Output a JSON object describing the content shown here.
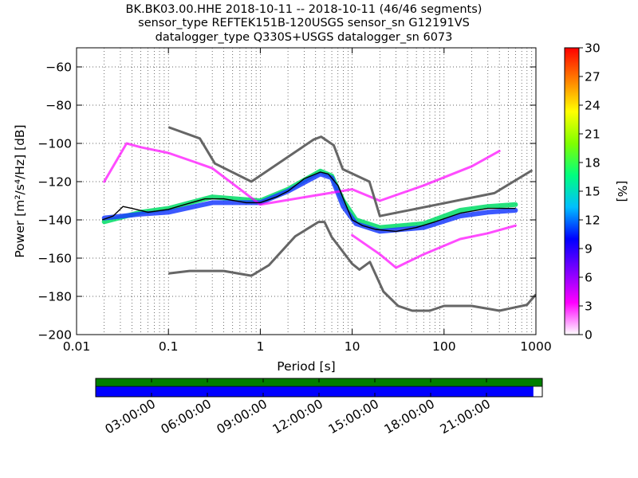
{
  "chart_data": {
    "type": "heatmap",
    "title_lines": [
      "BK.BK03.00.HHE   2018-10-11 -- 2018-10-11  (46/46 segments)",
      "sensor_type REFTEK151B-120USGS sensor_sn G12191VS",
      "datalogger_type Q330S+USGS datalogger_sn 6073"
    ],
    "xlabel": "Period [s]",
    "ylabel": "Power [m²/s⁴/Hz] [dB]",
    "x_scale": "log",
    "xlim": [
      0.01,
      1000
    ],
    "ylim": [
      -200,
      -50
    ],
    "x_ticks": [
      {
        "value": 0.01,
        "label": "0.01"
      },
      {
        "value": 0.1,
        "label": "0.1"
      },
      {
        "value": 1,
        "label": "1"
      },
      {
        "value": 10,
        "label": "10"
      },
      {
        "value": 100,
        "label": "100"
      },
      {
        "value": 1000,
        "label": "1000"
      }
    ],
    "y_ticks": [
      {
        "value": -60,
        "label": "−60"
      },
      {
        "value": -80,
        "label": "−80"
      },
      {
        "value": -100,
        "label": "−100"
      },
      {
        "value": -120,
        "label": "−120"
      },
      {
        "value": -140,
        "label": "−140"
      },
      {
        "value": -160,
        "label": "−160"
      },
      {
        "value": -180,
        "label": "−180"
      },
      {
        "value": -200,
        "label": "−200"
      }
    ],
    "colorbar": {
      "label": "[%]",
      "range": [
        0,
        30
      ],
      "ticks": [
        "0",
        "3",
        "6",
        "9",
        "12",
        "15",
        "18",
        "21",
        "24",
        "27",
        "30"
      ],
      "stops": [
        "#ffffff",
        "#ff00ff",
        "#7f00ff",
        "#0000ff",
        "#00bfff",
        "#00ff7f",
        "#7fff00",
        "#ffff00",
        "#ff7f00",
        "#ff0000"
      ]
    },
    "series": [
      {
        "name": "NHNM (high noise model)",
        "color": "#666666",
        "points": [
          [
            0.1,
            -91.5
          ],
          [
            0.22,
            -97.4
          ],
          [
            0.32,
            -110.5
          ],
          [
            0.8,
            -120
          ],
          [
            3.8,
            -98
          ],
          [
            4.6,
            -96.5
          ],
          [
            6.3,
            -101
          ],
          [
            7.9,
            -113.5
          ],
          [
            15.4,
            -120
          ],
          [
            20,
            -138
          ],
          [
            354,
            -126
          ],
          [
            912,
            -114
          ]
        ]
      },
      {
        "name": "NLNM (low noise model)",
        "color": "#666666",
        "points": [
          [
            0.1,
            -168
          ],
          [
            0.17,
            -166.7
          ],
          [
            0.4,
            -166.7
          ],
          [
            0.8,
            -169.2
          ],
          [
            1.24,
            -163.7
          ],
          [
            2.4,
            -148.6
          ],
          [
            4.3,
            -141.1
          ],
          [
            5,
            -141.1
          ],
          [
            6,
            -149
          ],
          [
            10,
            -163
          ],
          [
            12,
            -166
          ],
          [
            15.6,
            -162
          ],
          [
            21.9,
            -177.5
          ],
          [
            31.6,
            -185
          ],
          [
            45,
            -187.5
          ],
          [
            70,
            -187.5
          ],
          [
            100,
            -185
          ],
          [
            200,
            -185
          ],
          [
            400,
            -187.5
          ],
          [
            800,
            -184.4
          ],
          [
            1000,
            -179
          ]
        ]
      },
      {
        "name": "PSD mode",
        "color": "#000000",
        "points": [
          [
            0.019,
            -140
          ],
          [
            0.025,
            -138
          ],
          [
            0.032,
            -133
          ],
          [
            0.04,
            -134
          ],
          [
            0.06,
            -136
          ],
          [
            0.1,
            -134.5
          ],
          [
            0.15,
            -132
          ],
          [
            0.25,
            -129
          ],
          [
            0.4,
            -129
          ],
          [
            0.7,
            -131
          ],
          [
            1,
            -131
          ],
          [
            1.5,
            -128
          ],
          [
            2,
            -125
          ],
          [
            3,
            -118.5
          ],
          [
            4.5,
            -115
          ],
          [
            5.5,
            -116
          ],
          [
            7,
            -122
          ],
          [
            8.5,
            -132
          ],
          [
            10,
            -140
          ],
          [
            13,
            -143
          ],
          [
            18,
            -145
          ],
          [
            30,
            -146
          ],
          [
            50,
            -144
          ],
          [
            80,
            -141
          ],
          [
            150,
            -136.5
          ],
          [
            300,
            -134
          ],
          [
            600,
            -134
          ]
        ]
      }
    ],
    "histogram_bands": [
      {
        "name": "main band (green)",
        "color": "#00dd66",
        "points": [
          [
            0.02,
            -141
          ],
          [
            0.05,
            -136
          ],
          [
            0.1,
            -134
          ],
          [
            0.3,
            -128
          ],
          [
            1,
            -130
          ],
          [
            2,
            -124
          ],
          [
            4.5,
            -114.5
          ],
          [
            6,
            -117
          ],
          [
            8,
            -130
          ],
          [
            11,
            -140
          ],
          [
            20,
            -144
          ],
          [
            60,
            -142
          ],
          [
            150,
            -135
          ],
          [
            300,
            -133
          ],
          [
            600,
            -132
          ]
        ]
      },
      {
        "name": "main band (blue)",
        "color": "#1a3cff",
        "points": [
          [
            0.02,
            -139
          ],
          [
            0.05,
            -137
          ],
          [
            0.1,
            -136
          ],
          [
            0.3,
            -131
          ],
          [
            1,
            -131
          ],
          [
            2,
            -125
          ],
          [
            4.5,
            -116
          ],
          [
            6,
            -118
          ],
          [
            8,
            -133
          ],
          [
            11,
            -142
          ],
          [
            20,
            -146
          ],
          [
            60,
            -144
          ],
          [
            150,
            -138
          ],
          [
            300,
            -136
          ],
          [
            600,
            -135
          ]
        ]
      },
      {
        "name": "upper scatter (magenta)",
        "color": "#ff00ff",
        "points": [
          [
            0.02,
            -120
          ],
          [
            0.035,
            -100
          ],
          [
            0.05,
            -102
          ],
          [
            0.1,
            -105
          ],
          [
            0.2,
            -110
          ],
          [
            0.3,
            -113
          ],
          [
            1,
            -132
          ],
          [
            10,
            -124
          ],
          [
            20,
            -130
          ],
          [
            60,
            -122
          ],
          [
            200,
            -112
          ],
          [
            400,
            -104
          ]
        ]
      },
      {
        "name": "lower scatter (magenta)",
        "color": "#ff00ff",
        "points": [
          [
            10,
            -148
          ],
          [
            20,
            -158
          ],
          [
            30,
            -165
          ],
          [
            60,
            -158
          ],
          [
            150,
            -150
          ],
          [
            300,
            -147
          ],
          [
            600,
            -143
          ]
        ]
      }
    ]
  },
  "timeline": {
    "tick_labels": [
      "03:00:00",
      "06:00:00",
      "09:00:00",
      "12:00:00",
      "15:00:00",
      "18:00:00",
      "21:00:00"
    ],
    "data_coverage_fraction": 1.0,
    "psd_coverage_fraction": 0.98,
    "colors": {
      "data": "#007f00",
      "psd": "#0000ff"
    }
  }
}
